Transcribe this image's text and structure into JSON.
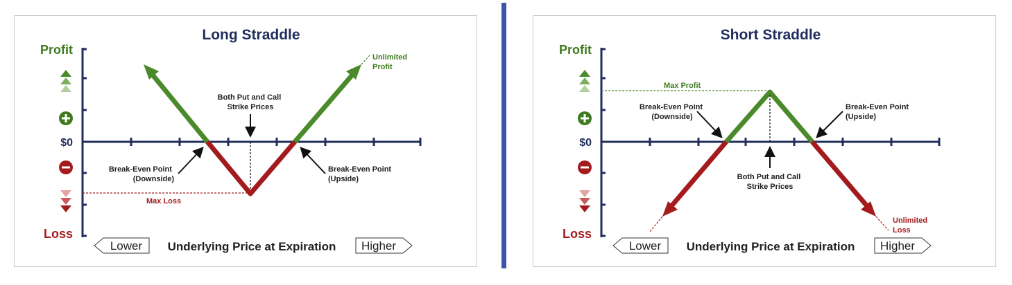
{
  "colors": {
    "profit_green": "#4a8a2a",
    "loss_red": "#a31b1d",
    "axis_navy": "#1f2d5c",
    "divider_blue": "#3c55a6"
  },
  "axis": {
    "profit": "Profit",
    "loss": "Loss",
    "zero": "$0",
    "lower": "Lower",
    "higher": "Higher",
    "xlabel": "Underlying Price at Expiration"
  },
  "icons": [
    "triple-up-arrow-icon",
    "plus-circle-icon",
    "minus-circle-icon",
    "triple-down-arrow-icon"
  ],
  "long_straddle": {
    "title": "Long Straddle",
    "strike_label": [
      "Both Put and Call",
      "Strike Prices"
    ],
    "breakeven_down": [
      "Break-Even Point",
      "(Downside)"
    ],
    "breakeven_up": [
      "Break-Even Point",
      "(Upside)"
    ],
    "max_loss": "Max Loss",
    "unlimited": [
      "Unlimited",
      "Profit"
    ]
  },
  "short_straddle": {
    "title": "Short Straddle",
    "strike_label": [
      "Both Put and Call",
      "Strike Prices"
    ],
    "breakeven_down": [
      "Break-Even Point",
      "(Downside)"
    ],
    "breakeven_up": [
      "Break-Even Point",
      "(Upside)"
    ],
    "max_profit": "Max Profit",
    "unlimited": [
      "Unlimited",
      "Loss"
    ]
  }
}
